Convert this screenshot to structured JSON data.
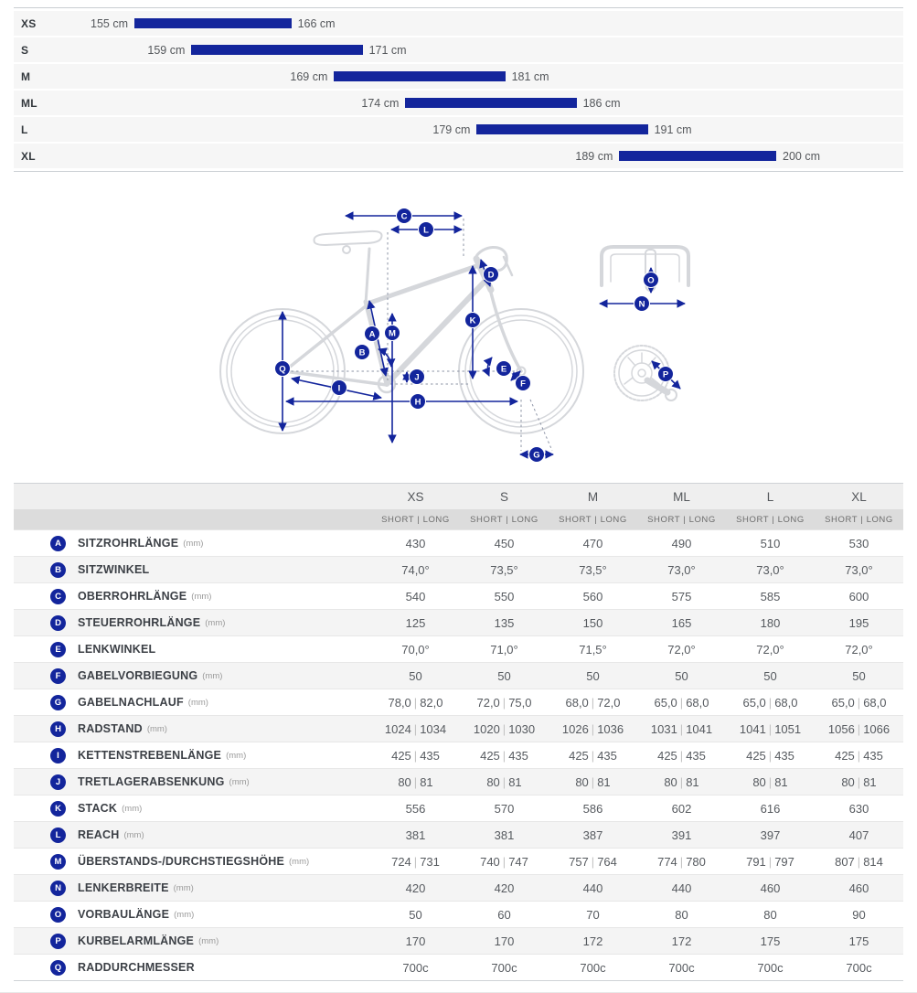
{
  "colors": {
    "navy": "#13259C",
    "bike_line": "#d5d7db",
    "reference_line": "#8d94a6"
  },
  "chart_data": [
    {
      "type": "bar",
      "title": "Rider height range per frame size",
      "orientation": "horizontal-range",
      "unit": "cm",
      "categories": [
        "XS",
        "S",
        "M",
        "ML",
        "L",
        "XL"
      ],
      "series": [
        {
          "name": "height-range-cm",
          "ranges": [
            [
              155,
              166
            ],
            [
              159,
              171
            ],
            [
              169,
              181
            ],
            [
              174,
              186
            ],
            [
              179,
              191
            ],
            [
              189,
              200
            ]
          ]
        }
      ],
      "xlim": [
        146,
        202
      ],
      "grid": false,
      "bar_color": "#13259C"
    },
    {
      "type": "table",
      "columns": [
        "XS",
        "S",
        "M",
        "ML",
        "L",
        "XL"
      ],
      "subheader": "SHORT | LONG",
      "rows": [
        {
          "letter": "A",
          "label": "SITZROHRLÄNGE",
          "unit": "(mm)",
          "values": [
            "430",
            "450",
            "470",
            "490",
            "510",
            "530"
          ]
        },
        {
          "letter": "B",
          "label": "SITZWINKEL",
          "unit": "",
          "values": [
            "74,0°",
            "73,5°",
            "73,5°",
            "73,0°",
            "73,0°",
            "73,0°"
          ]
        },
        {
          "letter": "C",
          "label": "OBERROHRLÄNGE",
          "unit": "(mm)",
          "values": [
            "540",
            "550",
            "560",
            "575",
            "585",
            "600"
          ]
        },
        {
          "letter": "D",
          "label": "STEUERROHRLÄNGE",
          "unit": "(mm)",
          "values": [
            "125",
            "135",
            "150",
            "165",
            "180",
            "195"
          ]
        },
        {
          "letter": "E",
          "label": "LENKWINKEL",
          "unit": "",
          "values": [
            "70,0°",
            "71,0°",
            "71,5°",
            "72,0°",
            "72,0°",
            "72,0°"
          ]
        },
        {
          "letter": "F",
          "label": "GABELVORBIEGUNG",
          "unit": "(mm)",
          "values": [
            "50",
            "50",
            "50",
            "50",
            "50",
            "50"
          ]
        },
        {
          "letter": "G",
          "label": "GABELNACHLAUF",
          "unit": "(mm)",
          "values": [
            "78,0 | 82,0",
            "72,0 | 75,0",
            "68,0 | 72,0",
            "65,0 | 68,0",
            "65,0 | 68,0",
            "65,0 | 68,0"
          ]
        },
        {
          "letter": "H",
          "label": "RADSTAND",
          "unit": "(mm)",
          "values": [
            "1024 | 1034",
            "1020 | 1030",
            "1026 | 1036",
            "1031 | 1041",
            "1041 | 1051",
            "1056 | 1066"
          ]
        },
        {
          "letter": "I",
          "label": "KETTENSTREBENLÄNGE",
          "unit": "(mm)",
          "values": [
            "425 | 435",
            "425 | 435",
            "425 | 435",
            "425 | 435",
            "425 | 435",
            "425 | 435"
          ]
        },
        {
          "letter": "J",
          "label": "TRETLAGERABSENKUNG",
          "unit": "(mm)",
          "values": [
            "80 | 81",
            "80 | 81",
            "80 | 81",
            "80 | 81",
            "80 | 81",
            "80 | 81"
          ]
        },
        {
          "letter": "K",
          "label": "STACK",
          "unit": "(mm)",
          "values": [
            "556",
            "570",
            "586",
            "602",
            "616",
            "630"
          ]
        },
        {
          "letter": "L",
          "label": "REACH",
          "unit": "(mm)",
          "values": [
            "381",
            "381",
            "387",
            "391",
            "397",
            "407"
          ]
        },
        {
          "letter": "M",
          "label": "ÜBERSTANDS-/DURCHSTIEGSHÖHE",
          "unit": "(mm)",
          "values": [
            "724 | 731",
            "740 | 747",
            "757 | 764",
            "774 | 780",
            "791 | 797",
            "807 | 814"
          ]
        },
        {
          "letter": "N",
          "label": "LENKERBREITE",
          "unit": "(mm)",
          "values": [
            "420",
            "420",
            "440",
            "440",
            "460",
            "460"
          ]
        },
        {
          "letter": "O",
          "label": "VORBAULÄNGE",
          "unit": "(mm)",
          "values": [
            "50",
            "60",
            "70",
            "80",
            "80",
            "90"
          ]
        },
        {
          "letter": "P",
          "label": "KURBELARMLÄNGE",
          "unit": "(mm)",
          "values": [
            "170",
            "170",
            "172",
            "172",
            "175",
            "175"
          ]
        },
        {
          "letter": "Q",
          "label": "RADDURCHMESSER",
          "unit": "",
          "values": [
            "700c",
            "700c",
            "700c",
            "700c",
            "700c",
            "700c"
          ]
        }
      ]
    }
  ],
  "diagram": {
    "badges": [
      "A",
      "B",
      "C",
      "D",
      "E",
      "F",
      "G",
      "H",
      "I",
      "J",
      "K",
      "L",
      "M",
      "N",
      "O",
      "P",
      "Q"
    ]
  }
}
